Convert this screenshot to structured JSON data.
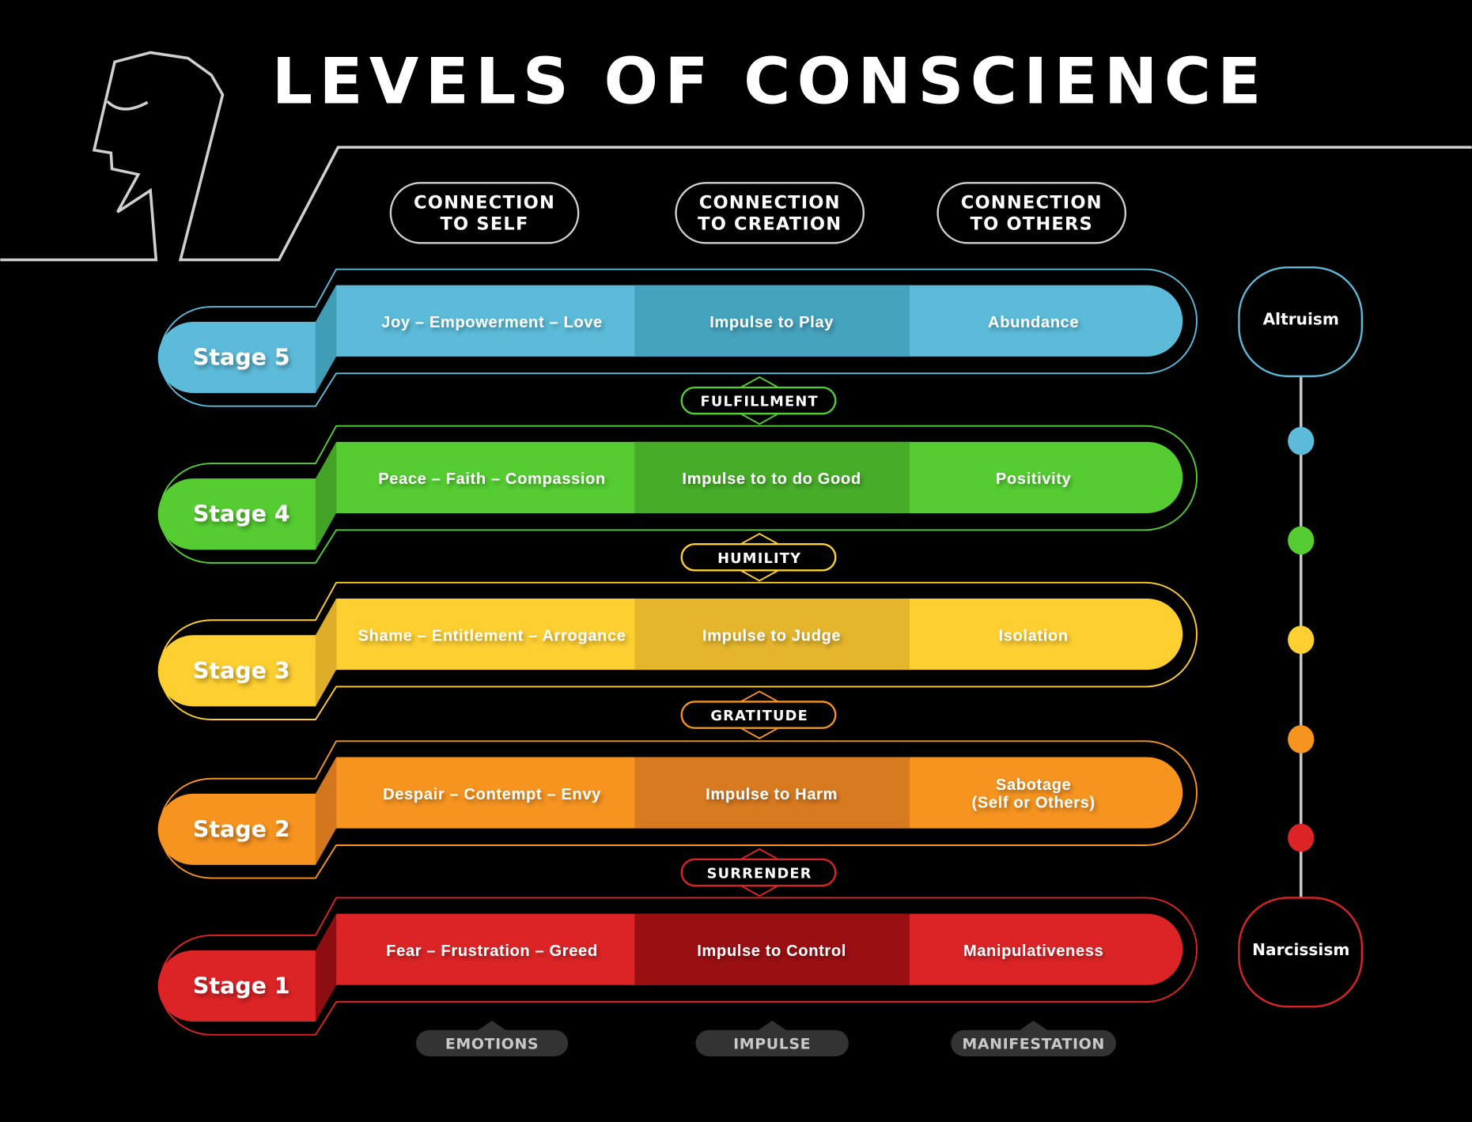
{
  "title": "LEVELS OF CONSCIENCE",
  "headers": [
    {
      "line1": "CONNECTION",
      "line2": "TO SELF"
    },
    {
      "line1": "CONNECTION",
      "line2": "TO CREATION"
    },
    {
      "line1": "CONNECTION",
      "line2": "TO OTHERS"
    }
  ],
  "stages": [
    {
      "label": "Stage 5",
      "emotions": "Joy – Empowerment – Love",
      "impulse": "Impulse to Play",
      "manifestation": [
        "Abundance"
      ],
      "color": "#5bbbd9",
      "mid": "#44a3bd",
      "bevel": "#3f9db6"
    },
    {
      "label": "Stage 4",
      "emotions": "Peace – Faith – Compassion",
      "impulse": "Impulse to to do Good",
      "manifestation": [
        "Positivity"
      ],
      "color": "#55cd32",
      "mid": "#47ad29",
      "bevel": "#42a326"
    },
    {
      "label": "Stage 3",
      "emotions": "Shame – Entitlement – Arrogance",
      "impulse": "Impulse to Judge",
      "manifestation": [
        "Isolation"
      ],
      "color": "#fecf30",
      "mid": "#e5b62c",
      "bevel": "#deae28"
    },
    {
      "label": "Stage 2",
      "emotions": "Despair – Contempt – Envy",
      "impulse": "Impulse to Harm",
      "manifestation": [
        "Sabotage",
        "(Self or Others)"
      ],
      "color": "#f79420",
      "mid": "#d87a20",
      "bevel": "#d3771e"
    },
    {
      "label": "Stage 1",
      "emotions": "Fear – Frustration – Greed",
      "impulse": "Impulse to Control",
      "manifestation": [
        "Manipulativeness"
      ],
      "color": "#dc2426",
      "mid": "#9a0f12",
      "bevel": "#8e0d10"
    }
  ],
  "connectors": [
    {
      "label": "FULFILLMENT",
      "color": "#55cd32"
    },
    {
      "label": "HUMILITY",
      "color": "#fecf30"
    },
    {
      "label": "GRATITUDE",
      "color": "#f79420"
    },
    {
      "label": "SURRENDER",
      "color": "#dc2426"
    }
  ],
  "footer": [
    "EMOTIONS",
    "IMPULSE",
    "MANIFESTATION"
  ],
  "scale": {
    "top": {
      "label": "Altruism",
      "color": "#5bbbd9"
    },
    "bottom": {
      "label": "Narcissism",
      "color": "#dc2426"
    },
    "dots": [
      "#5bbbd9",
      "#55cd32",
      "#fecf30",
      "#f79420",
      "#dc2426"
    ]
  },
  "icons": {
    "head": "head-profile-icon"
  }
}
